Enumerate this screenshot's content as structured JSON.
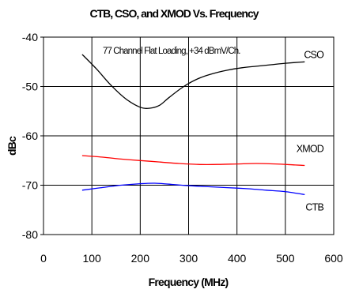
{
  "chart_data": {
    "type": "line",
    "title": "CTB, CSO, and XMOD Vs. Frequency",
    "xlabel": "Frequency (MHz)",
    "ylabel": "dBc",
    "annotation": "77 Channel Flat Loading, +34 dBmV/Ch.",
    "xlim": [
      0,
      600
    ],
    "ylim": [
      -80,
      -40
    ],
    "xticks": [
      "0",
      "100",
      "200",
      "300",
      "400",
      "500",
      "600"
    ],
    "yticks": [
      "-40",
      "-50",
      "-60",
      "-70",
      "-80"
    ],
    "grid": true,
    "legend": "none",
    "series": [
      {
        "name": "CSO",
        "color": "#000000",
        "x": [
          80,
          110,
          140,
          170,
          200,
          220,
          240,
          260,
          290,
          320,
          350,
          380,
          410,
          440,
          470,
          500,
          540
        ],
        "y": [
          -43.5,
          -46.5,
          -49.8,
          -52.5,
          -54.2,
          -54.4,
          -53.8,
          -52.2,
          -50.0,
          -48.4,
          -47.4,
          -46.7,
          -46.2,
          -45.9,
          -45.6,
          -45.3,
          -45.0
        ]
      },
      {
        "name": "XMOD",
        "color": "#ff0000",
        "x": [
          80,
          120,
          160,
          200,
          240,
          280,
          320,
          360,
          400,
          440,
          480,
          520,
          540
        ],
        "y": [
          -64.0,
          -64.3,
          -64.7,
          -65.0,
          -65.3,
          -65.6,
          -65.8,
          -65.8,
          -65.7,
          -65.6,
          -65.7,
          -65.9,
          -66.0
        ]
      },
      {
        "name": "CTB",
        "color": "#0000ff",
        "x": [
          80,
          120,
          160,
          200,
          230,
          260,
          300,
          340,
          380,
          420,
          460,
          500,
          540
        ],
        "y": [
          -71.0,
          -70.5,
          -70.0,
          -69.7,
          -69.6,
          -69.8,
          -70.1,
          -70.3,
          -70.5,
          -70.7,
          -71.0,
          -71.3,
          -71.9
        ]
      }
    ]
  }
}
